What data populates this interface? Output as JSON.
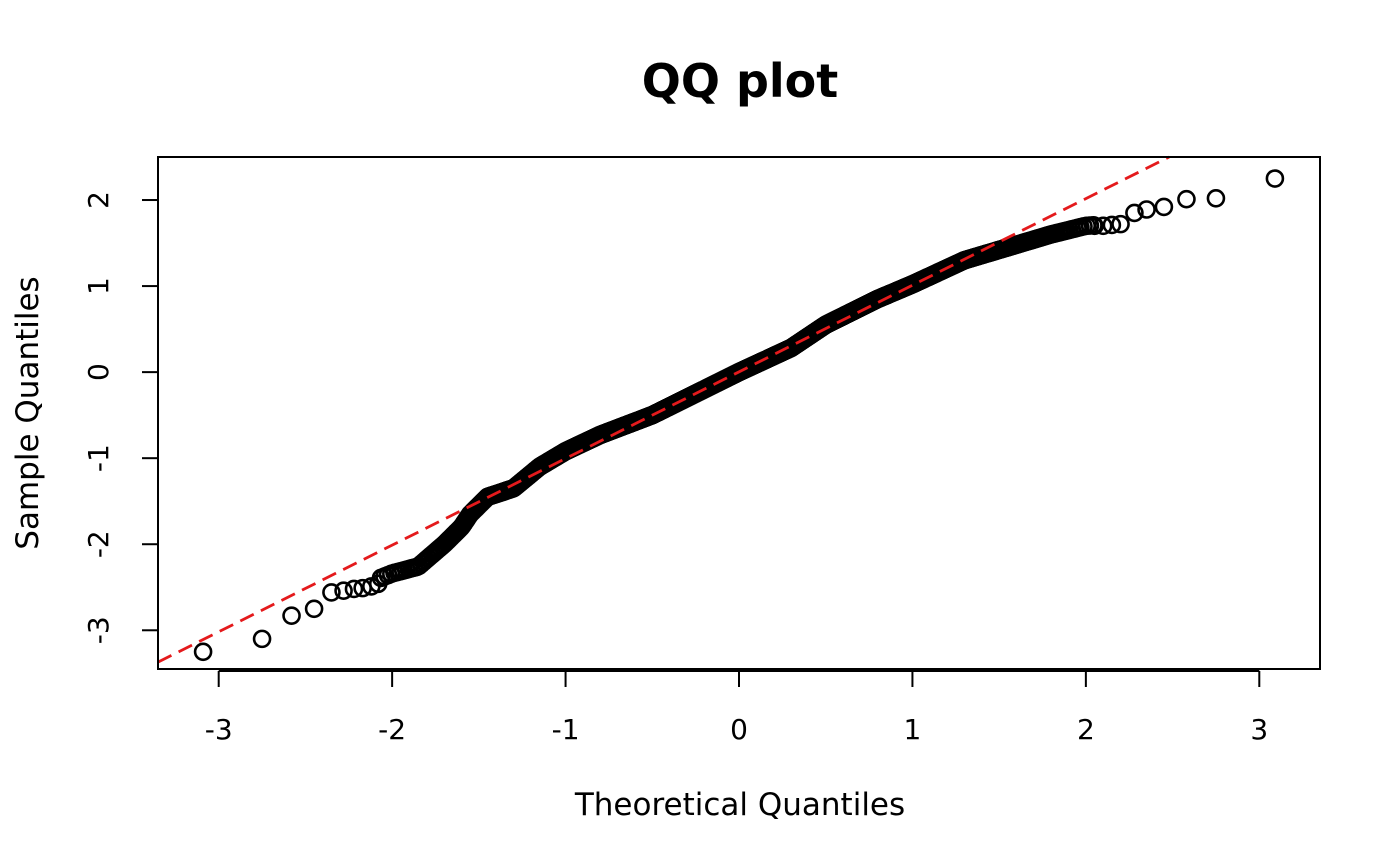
{
  "chart_data": {
    "type": "scatter",
    "title": "QQ plot",
    "xlabel": "Theoretical Quantiles",
    "ylabel": "Sample Quantiles",
    "xlim": [
      -3.35,
      3.35
    ],
    "ylim": [
      -3.45,
      2.5
    ],
    "x_ticks": [
      -3,
      -2,
      -1,
      0,
      1,
      2,
      3
    ],
    "y_ticks": [
      -3,
      -2,
      -1,
      0,
      1,
      2
    ],
    "x_tick_labels": [
      "-3",
      "-2",
      "-1",
      "0",
      "1",
      "2",
      "3"
    ],
    "y_tick_labels": [
      "-3",
      "-2",
      "-1",
      "0",
      "1",
      "2"
    ],
    "grid": false,
    "legend": "none",
    "point_color": "#000000",
    "point_marker": "open-circle",
    "reference_line": {
      "style": "dashed",
      "color": "#e41a1c",
      "points": [
        [
          -3.35,
          -3.37
        ],
        [
          2.48,
          2.5
        ]
      ]
    },
    "qq_control": [
      [
        -3.09,
        -3.25
      ],
      [
        -2.75,
        -3.1
      ],
      [
        -2.58,
        -2.83
      ],
      [
        -2.45,
        -2.75
      ],
      [
        -2.35,
        -2.56
      ],
      [
        -2.2,
        -2.5
      ],
      [
        -2.0,
        -2.34
      ],
      [
        -1.85,
        -2.26
      ],
      [
        -1.7,
        -2.0
      ],
      [
        -1.6,
        -1.8
      ],
      [
        -1.55,
        -1.65
      ],
      [
        -1.45,
        -1.45
      ],
      [
        -1.3,
        -1.35
      ],
      [
        -1.15,
        -1.1
      ],
      [
        -1.0,
        -0.92
      ],
      [
        -0.8,
        -0.73
      ],
      [
        -0.5,
        -0.5
      ],
      [
        0.0,
        0.0
      ],
      [
        0.3,
        0.28
      ],
      [
        0.5,
        0.55
      ],
      [
        0.8,
        0.85
      ],
      [
        1.0,
        1.02
      ],
      [
        1.3,
        1.3
      ],
      [
        1.6,
        1.48
      ],
      [
        1.8,
        1.6
      ],
      [
        2.0,
        1.7
      ],
      [
        2.22,
        1.73
      ]
    ],
    "tail_points": [
      [
        -3.09,
        -3.25
      ],
      [
        -2.75,
        -3.1
      ],
      [
        -2.58,
        -2.83
      ],
      [
        -2.45,
        -2.75
      ],
      [
        -2.35,
        -2.56
      ],
      [
        -2.28,
        -2.54
      ],
      [
        -2.22,
        -2.52
      ],
      [
        -2.17,
        -2.51
      ],
      [
        -2.12,
        -2.49
      ],
      [
        -2.08,
        -2.46
      ],
      [
        2.05,
        1.7
      ],
      [
        2.1,
        1.7
      ],
      [
        2.15,
        1.71
      ],
      [
        2.2,
        1.72
      ],
      [
        2.28,
        1.85
      ],
      [
        2.35,
        1.89
      ],
      [
        2.45,
        1.92
      ],
      [
        2.58,
        2.01
      ],
      [
        2.75,
        2.02
      ],
      [
        3.09,
        2.25
      ]
    ],
    "n_points": 1000
  }
}
